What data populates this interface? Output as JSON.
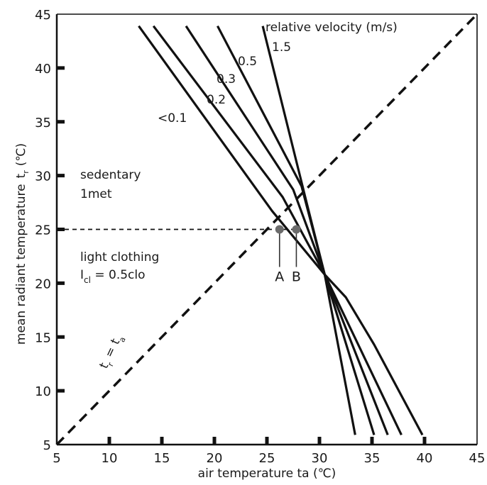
{
  "chart_data": {
    "type": "line",
    "xlabel": "air temperature ta (℃)",
    "ylabel": "mean radiant temperature",
    "ylabel_symbol": "t",
    "ylabel_symbol_sub": "r",
    "ylabel_unit": "(℃)",
    "xlim": [
      5,
      45
    ],
    "ylim": [
      5,
      45
    ],
    "x_ticks": [
      "5",
      "10",
      "15",
      "20",
      "25",
      "30",
      "35",
      "40",
      "45"
    ],
    "y_ticks": [
      "5",
      "10",
      "15",
      "20",
      "25",
      "30",
      "35",
      "40",
      "45"
    ],
    "grid": false,
    "legend_title": "relative velocity (m/s)",
    "series": [
      {
        "name": "<0.1",
        "points": [
          [
            12.8,
            43.9
          ],
          [
            25.5,
            26.7
          ],
          [
            30.5,
            20.8
          ],
          [
            33.4,
            5.9
          ]
        ]
      },
      {
        "name": "0.2",
        "points": [
          [
            14.2,
            43.9
          ],
          [
            26.5,
            28.0
          ],
          [
            30.5,
            20.8
          ],
          [
            35.2,
            5.9
          ]
        ]
      },
      {
        "name": "0.3",
        "points": [
          [
            17.3,
            43.9
          ],
          [
            27.5,
            28.7
          ],
          [
            30.5,
            20.8
          ],
          [
            36.5,
            5.9
          ]
        ]
      },
      {
        "name": "0.5",
        "points": [
          [
            20.3,
            43.9
          ],
          [
            28.3,
            29.0
          ],
          [
            30.5,
            20.8
          ],
          [
            37.8,
            5.9
          ]
        ]
      },
      {
        "name": "1.5",
        "points": [
          [
            24.6,
            43.9
          ],
          [
            28.8,
            27.4
          ],
          [
            30.5,
            20.8
          ],
          [
            32.5,
            18.7
          ],
          [
            35.2,
            14.3
          ],
          [
            39.8,
            5.9
          ]
        ]
      }
    ],
    "diagonal_label_t": "t",
    "diagonal_label_sub_r": "r",
    "diagonal_label_eq": "=",
    "diagonal_label_ta": "t",
    "diagonal_label_sub_a": "a",
    "annotations": {
      "sedentary": "sedentary",
      "met": "1met",
      "clothing": "light clothing",
      "icl_i": "I",
      "icl_sub": "cl",
      "icl_rest": " = 0.5clo"
    },
    "reference_y": 25,
    "marked_points": [
      {
        "label": "A",
        "x": 26.2,
        "y": 25
      },
      {
        "label": "B",
        "x": 27.8,
        "y": 25
      }
    ]
  }
}
